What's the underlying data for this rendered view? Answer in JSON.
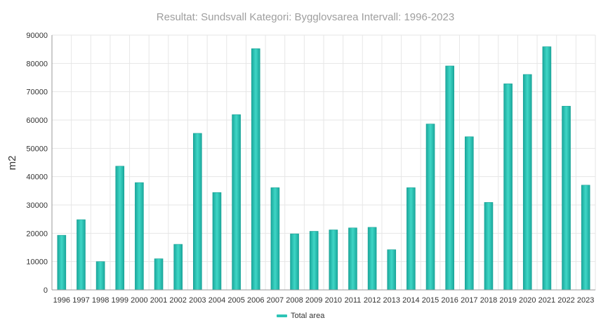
{
  "chart_data": {
    "type": "bar",
    "title": "Resultat: Sundsvall Kategori: Bygglovsarea Intervall: 1996-2023",
    "ylabel": "m2",
    "xlabel": "",
    "ylim": [
      0,
      90000
    ],
    "yticks": [
      0,
      10000,
      20000,
      30000,
      40000,
      50000,
      60000,
      70000,
      80000,
      90000
    ],
    "grid": true,
    "legend_position": "bottom",
    "categories": [
      "1996",
      "1997",
      "1998",
      "1999",
      "2000",
      "2001",
      "2002",
      "2003",
      "2004",
      "2005",
      "2006",
      "2007",
      "2008",
      "2009",
      "2010",
      "2011",
      "2012",
      "2013",
      "2014",
      "2015",
      "2016",
      "2017",
      "2018",
      "2019",
      "2020",
      "2021",
      "2022",
      "2023"
    ],
    "series": [
      {
        "name": "Total area",
        "color": "#2ec4b6",
        "values": [
          19300,
          24800,
          10000,
          43700,
          37900,
          11000,
          16100,
          55300,
          34400,
          61900,
          85200,
          36100,
          19800,
          20700,
          21200,
          21900,
          22100,
          14200,
          36100,
          58600,
          79100,
          54100,
          30900,
          72800,
          76100,
          85900,
          64900,
          37000
        ]
      }
    ]
  }
}
